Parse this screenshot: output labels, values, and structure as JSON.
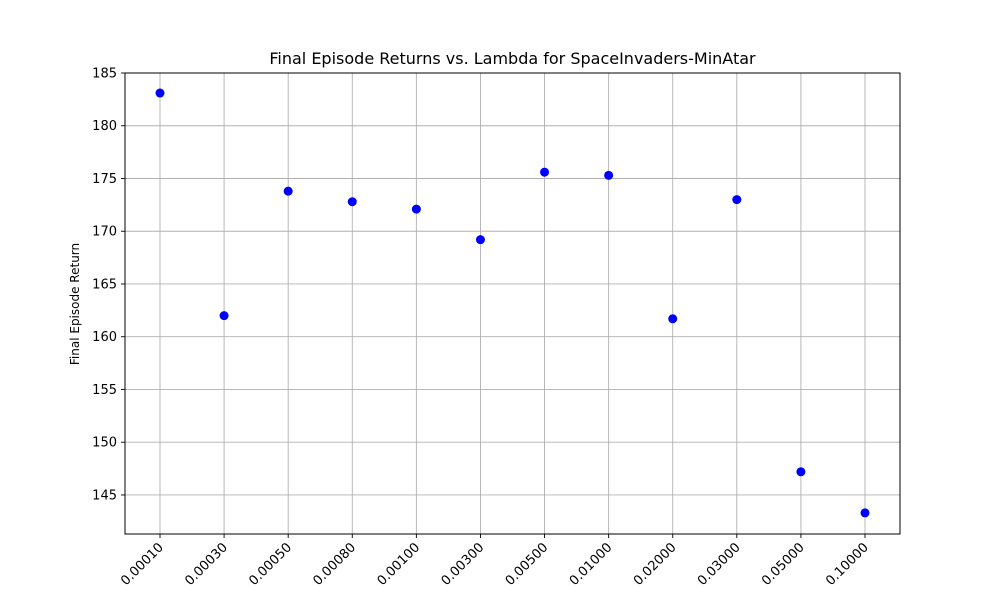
{
  "chart_data": {
    "type": "scatter",
    "title": "Final Episode Returns vs. Lambda for SpaceInvaders-MinAtar",
    "xlabel": "",
    "ylabel": "Final Episode Return",
    "categories": [
      "0.00010",
      "0.00030",
      "0.00050",
      "0.00080",
      "0.00100",
      "0.00300",
      "0.00500",
      "0.01000",
      "0.02000",
      "0.03000",
      "0.05000",
      "0.10000"
    ],
    "values": [
      183.1,
      162.0,
      173.8,
      172.8,
      172.1,
      169.2,
      175.6,
      175.3,
      161.7,
      173.0,
      147.2,
      143.3
    ],
    "ylim": [
      141.3,
      185.0
    ],
    "yticks": [
      145,
      150,
      155,
      160,
      165,
      170,
      175,
      180,
      185
    ],
    "grid": true,
    "marker_color": "#0000ff",
    "x_tick_rotation": "45 degrees"
  }
}
